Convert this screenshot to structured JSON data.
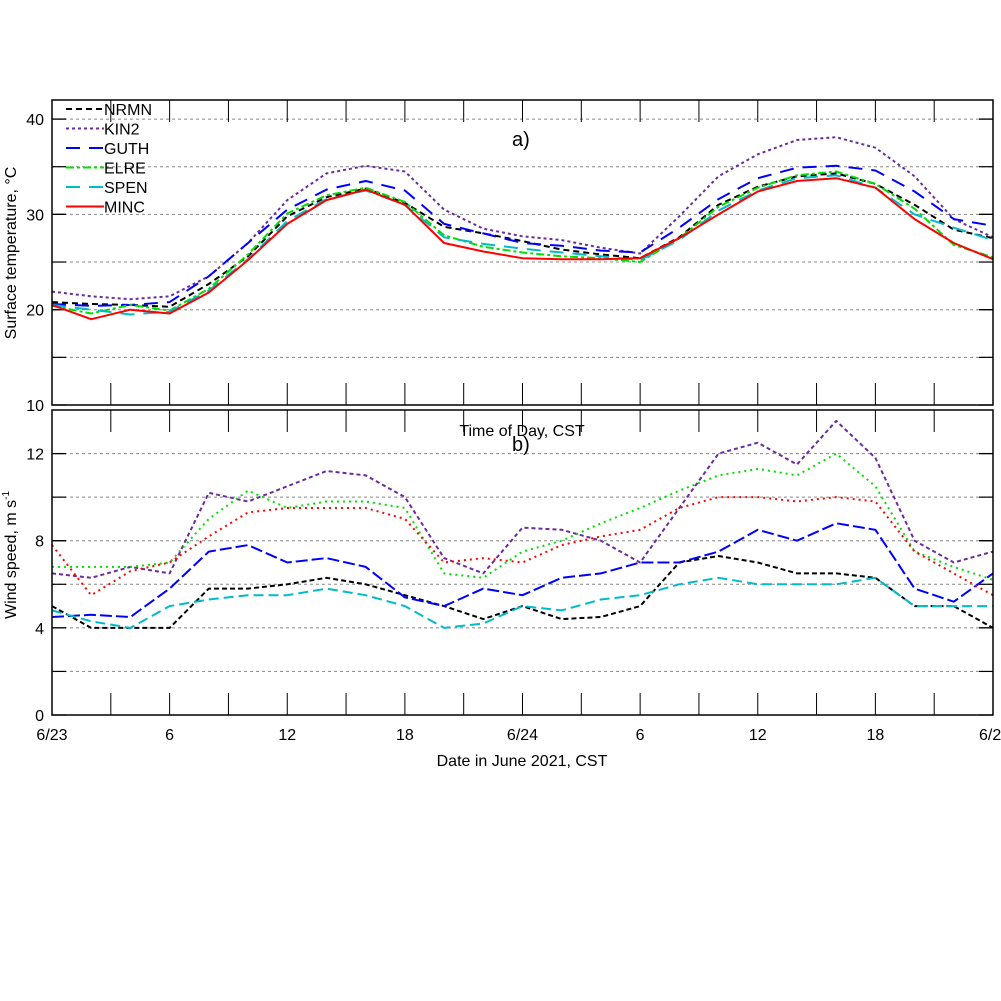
{
  "chart_data": [
    {
      "type": "line",
      "panel_label": "a)",
      "title": "",
      "xlabel": "",
      "ylabel": "Surface temperature, °C",
      "ylim": [
        10,
        42
      ],
      "yticks": [
        10,
        20,
        30,
        40
      ],
      "ygrid": [
        15,
        20,
        25,
        30,
        35,
        40
      ],
      "grid": true,
      "legend_placement": "top-left",
      "x_hours": [
        0,
        2,
        4,
        6,
        8,
        10,
        12,
        14,
        16,
        18,
        20,
        22,
        24,
        26,
        28,
        30,
        32,
        34,
        36,
        38,
        40,
        42,
        44,
        46,
        48
      ],
      "series": [
        {
          "name": "NRMN",
          "color": "#000000",
          "values": [
            20.8,
            20.6,
            20.5,
            20.3,
            22.7,
            25.6,
            29.8,
            31.8,
            32.7,
            31.2,
            28.7,
            28.0,
            27.2,
            26.3,
            25.8,
            25.4,
            27.6,
            31.0,
            32.9,
            34.0,
            34.3,
            33.2,
            31.0,
            28.4,
            27.5
          ]
        },
        {
          "name": "KIN2",
          "color": "#6a2c9c",
          "values": [
            21.9,
            21.4,
            21.1,
            21.4,
            23.5,
            27.0,
            31.5,
            34.3,
            35.1,
            34.5,
            30.5,
            28.5,
            27.7,
            27.3,
            26.5,
            25.9,
            29.8,
            34.0,
            36.3,
            37.8,
            38.1,
            37.0,
            34.0,
            29.5,
            27.6
          ]
        },
        {
          "name": "GUTH",
          "color": "#0000ff",
          "values": [
            20.6,
            20.4,
            20.5,
            20.8,
            23.5,
            27.0,
            30.5,
            32.6,
            33.5,
            32.5,
            29.0,
            28.0,
            27.0,
            26.7,
            26.2,
            26.0,
            28.6,
            31.6,
            33.8,
            34.9,
            35.1,
            34.6,
            32.4,
            29.5,
            28.8
          ]
        },
        {
          "name": "ELRE",
          "color": "#00e000",
          "values": [
            20.4,
            19.6,
            20.5,
            19.9,
            22.2,
            25.8,
            30.1,
            32.0,
            32.8,
            31.3,
            27.8,
            26.6,
            26.0,
            25.6,
            25.4,
            25.0,
            27.5,
            30.8,
            32.8,
            34.1,
            34.5,
            33.2,
            30.6,
            26.8,
            25.5
          ]
        },
        {
          "name": "SPEN",
          "color": "#00bcc8",
          "values": [
            20.5,
            20.0,
            19.5,
            19.8,
            22.0,
            25.3,
            29.3,
            31.6,
            32.5,
            31.0,
            27.6,
            26.9,
            26.4,
            26.0,
            25.6,
            25.2,
            27.3,
            30.4,
            32.5,
            33.8,
            34.1,
            32.8,
            30.0,
            28.6,
            27.3
          ]
        },
        {
          "name": "MINC",
          "color": "#ff0000",
          "values": [
            20.5,
            19.0,
            20.0,
            19.6,
            21.8,
            25.2,
            29.0,
            31.5,
            32.6,
            31.0,
            27.0,
            26.1,
            25.4,
            25.3,
            25.3,
            25.4,
            27.5,
            30.0,
            32.4,
            33.5,
            33.8,
            32.8,
            29.5,
            27.0,
            25.3
          ]
        }
      ]
    },
    {
      "type": "line",
      "panel_label": "b)",
      "title": "Time of Day, CST",
      "xlabel": "Date in June 2021, CST",
      "ylabel": "Wind speed, m s",
      "ylabel_superscript": "-1",
      "ylim": [
        0,
        14
      ],
      "yticks": [
        0,
        4,
        8,
        12
      ],
      "ygrid": [
        2,
        4,
        6,
        8,
        10,
        12
      ],
      "grid": true,
      "xtick_labels": [
        "6/23",
        "6",
        "12",
        "18",
        "6/24",
        "6",
        "12",
        "18",
        "6/2"
      ],
      "xtick_hours": [
        0,
        6,
        12,
        18,
        24,
        30,
        36,
        42,
        48
      ],
      "x_hours": [
        0,
        2,
        4,
        6,
        8,
        10,
        12,
        14,
        16,
        18,
        20,
        22,
        24,
        26,
        28,
        30,
        32,
        34,
        36,
        38,
        40,
        42,
        44,
        46,
        48
      ],
      "series": [
        {
          "name": "NRMN",
          "color": "#000000",
          "values": [
            5.0,
            4.0,
            4.0,
            4.0,
            5.8,
            5.8,
            6.0,
            6.3,
            6.0,
            5.5,
            5.0,
            4.4,
            5.0,
            4.4,
            4.5,
            5.0,
            7.0,
            7.3,
            7.0,
            6.5,
            6.5,
            6.3,
            5.0,
            5.0,
            4.0
          ]
        },
        {
          "name": "KIN2",
          "color": "#6a2c9c",
          "values": [
            6.5,
            6.3,
            6.8,
            6.5,
            10.2,
            9.8,
            10.5,
            11.2,
            11.0,
            10.0,
            7.2,
            6.5,
            8.6,
            8.5,
            8.0,
            7.0,
            9.5,
            12.0,
            12.5,
            11.5,
            13.5,
            11.8,
            8.0,
            7.0,
            7.5
          ]
        },
        {
          "name": "GUTH",
          "color": "#0000ff",
          "values": [
            4.5,
            4.6,
            4.5,
            5.8,
            7.5,
            7.8,
            7.0,
            7.2,
            6.8,
            5.4,
            5.0,
            5.8,
            5.5,
            6.3,
            6.5,
            7.0,
            7.0,
            7.5,
            8.5,
            8.0,
            8.8,
            8.5,
            5.8,
            5.2,
            6.5
          ]
        },
        {
          "name": "ELRE",
          "color": "#00e000",
          "values": [
            6.8,
            6.8,
            6.8,
            7.0,
            9.0,
            10.3,
            9.5,
            9.8,
            9.8,
            9.5,
            6.5,
            6.3,
            7.5,
            8.0,
            8.8,
            9.5,
            10.3,
            11.0,
            11.3,
            11.0,
            12.0,
            10.5,
            7.5,
            6.8,
            6.2
          ]
        },
        {
          "name": "SPEN",
          "color": "#00bcc8",
          "values": [
            4.8,
            4.3,
            4.0,
            5.0,
            5.3,
            5.5,
            5.5,
            5.8,
            5.5,
            5.0,
            4.0,
            4.2,
            5.0,
            4.8,
            5.3,
            5.5,
            6.0,
            6.3,
            6.0,
            6.0,
            6.0,
            6.3,
            5.0,
            5.0,
            5.0
          ]
        },
        {
          "name": "MINC",
          "color": "#ff0000",
          "values": [
            7.8,
            5.5,
            6.6,
            7.0,
            8.2,
            9.3,
            9.5,
            9.5,
            9.5,
            9.0,
            7.0,
            7.2,
            7.0,
            7.8,
            8.2,
            8.5,
            9.5,
            10.0,
            10.0,
            9.8,
            10.0,
            9.8,
            7.5,
            6.5,
            5.5
          ]
        }
      ]
    }
  ]
}
